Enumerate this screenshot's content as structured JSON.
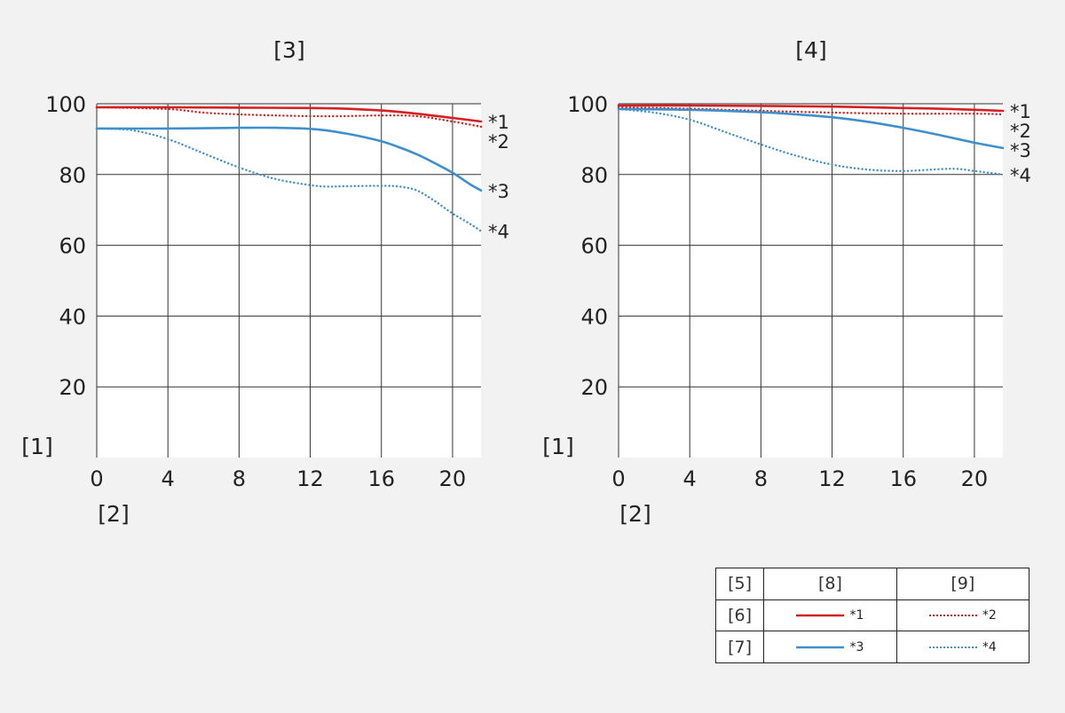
{
  "chart_data": [
    {
      "type": "line",
      "title": "[3]",
      "ylabel": "[1]",
      "xlabel": "[2]",
      "xlim": [
        0,
        21.6
      ],
      "ylim": [
        0,
        100
      ],
      "xticks": [
        "0",
        "4",
        "8",
        "12",
        "16",
        "20"
      ],
      "yticks": [
        "20",
        "40",
        "60",
        "80",
        "100"
      ],
      "grid": true,
      "series": [
        {
          "name": "*1",
          "color": "#d42020",
          "dash": "solid",
          "x": [
            0,
            4,
            8,
            12,
            14,
            16,
            17,
            18,
            19,
            20,
            21.6
          ],
          "y": [
            99,
            99,
            98.9,
            98.8,
            98.6,
            98.1,
            97.7,
            97.2,
            96.6,
            96,
            95
          ]
        },
        {
          "name": "*2",
          "color": "#d42020",
          "dash": "dotted",
          "x": [
            0,
            4,
            6,
            8,
            10,
            12,
            14,
            16,
            18,
            20,
            21.6
          ],
          "y": [
            99,
            98.5,
            97.5,
            97,
            96.7,
            96.5,
            96.5,
            96.7,
            96.5,
            95,
            93.5
          ]
        },
        {
          "name": "*3",
          "color": "#3f8fcc",
          "dash": "solid",
          "x": [
            0,
            4,
            8,
            10,
            12,
            13,
            14,
            15,
            16,
            17,
            18,
            19,
            20,
            21,
            21.6
          ],
          "y": [
            93,
            93,
            93.2,
            93.2,
            92.9,
            92.4,
            91.6,
            90.6,
            89.4,
            87.7,
            85.7,
            83.2,
            80.5,
            77.2,
            75.5
          ]
        },
        {
          "name": "*4",
          "color": "#3f8fcc",
          "dash": "dotted",
          "x": [
            0,
            2,
            4,
            6,
            8,
            10,
            12,
            13,
            14,
            16,
            17,
            18,
            19,
            20,
            21,
            21.6
          ],
          "y": [
            93,
            92.5,
            90,
            86,
            82,
            78.8,
            77,
            76.6,
            76.7,
            76.8,
            76.6,
            75.5,
            72.5,
            69,
            66,
            64
          ]
        }
      ],
      "end_labels": [
        "*1",
        "*2",
        "*3",
        "*4"
      ]
    },
    {
      "type": "line",
      "title": "[4]",
      "ylabel": "[1]",
      "xlabel": "[2]",
      "xlim": [
        0,
        21.6
      ],
      "ylim": [
        0,
        100
      ],
      "xticks": [
        "0",
        "4",
        "8",
        "12",
        "16",
        "20"
      ],
      "yticks": [
        "20",
        "40",
        "60",
        "80",
        "100"
      ],
      "grid": true,
      "series": [
        {
          "name": "*1",
          "color": "#d42020",
          "dash": "solid",
          "x": [
            0,
            4,
            8,
            12,
            16,
            18,
            20,
            21.6
          ],
          "y": [
            99.5,
            99.5,
            99.4,
            99.2,
            98.8,
            98.6,
            98.3,
            98
          ]
        },
        {
          "name": "*2",
          "color": "#d42020",
          "dash": "dotted",
          "x": [
            0,
            4,
            8,
            12,
            16,
            20,
            21.6
          ],
          "y": [
            99,
            98.6,
            98,
            97.5,
            97.2,
            97.2,
            97
          ]
        },
        {
          "name": "*3",
          "color": "#3f8fcc",
          "dash": "solid",
          "x": [
            0,
            4,
            8,
            10,
            12,
            14,
            16,
            18,
            20,
            21.6
          ],
          "y": [
            98.5,
            98.3,
            97.6,
            97,
            96.2,
            94.9,
            93.2,
            91.2,
            89,
            87.5
          ]
        },
        {
          "name": "*4",
          "color": "#3f8fcc",
          "dash": "dotted",
          "x": [
            0,
            2,
            4,
            6,
            8,
            10,
            12,
            14,
            16,
            18,
            19,
            20,
            21.6
          ],
          "y": [
            98.5,
            97.5,
            95.5,
            92,
            88.5,
            85.3,
            82.8,
            81.4,
            81,
            81.5,
            81.6,
            81,
            80
          ]
        }
      ],
      "end_labels": [
        "*1",
        "*2",
        "*3",
        "*4"
      ]
    }
  ],
  "legend": {
    "header": [
      "[5]",
      "[8]",
      "[9]"
    ],
    "rows": [
      {
        "label": "[6]",
        "solid": "*1",
        "dotted": "*2",
        "color": "#d42020"
      },
      {
        "label": "[7]",
        "solid": "*3",
        "dotted": "*4",
        "color": "#3f8fcc"
      }
    ]
  }
}
